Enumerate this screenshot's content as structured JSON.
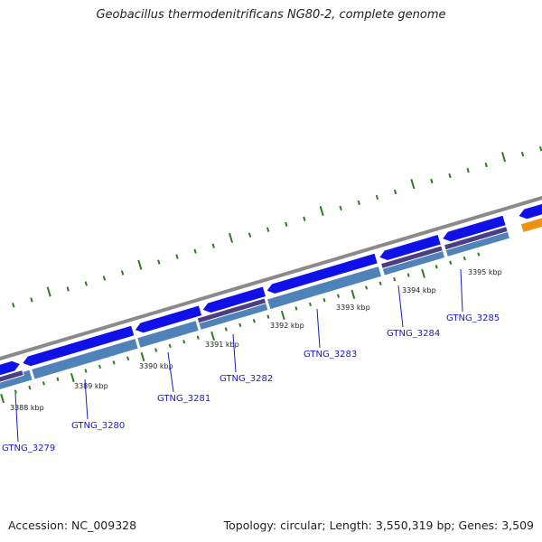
{
  "title": "Geobacillus thermodenitrificans NG80-2, complete genome",
  "footer": {
    "accession": "Accession: NC_009328",
    "summary": "Topology: circular; Length: 3,550,319 bp; Genes: 3,509"
  },
  "colors": {
    "backbone": "#8a8a8a",
    "forward_gene": "#1010e8",
    "reverse_gene": "#4f82b8",
    "reverse_gene_dark": "#4a3d86",
    "orange_gene": "#f09010",
    "ticks": "#2e7d1e",
    "label": "#1a1acc"
  },
  "kbp_labels": [
    "3388 kbp",
    "3389 kbp",
    "3390 kbp",
    "3391 kbp",
    "3392 kbp",
    "3393 kbp",
    "3394 kbp",
    "3395 kbp"
  ],
  "gene_labels": [
    "GTNG_3279",
    "GTNG_3280",
    "GTNG_3281",
    "GTNG_3282",
    "GTNG_3283",
    "GTNG_3284",
    "GTNG_3285"
  ]
}
